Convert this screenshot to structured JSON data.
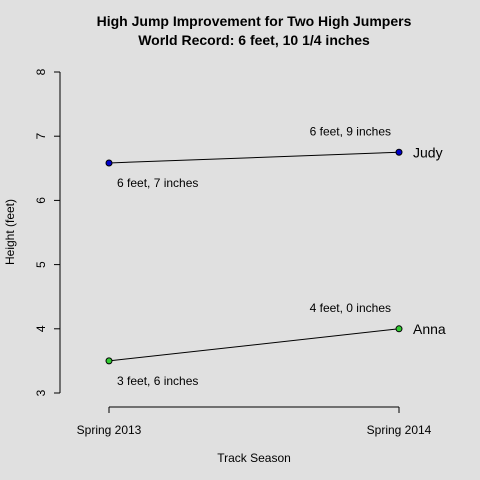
{
  "chart_data": {
    "type": "line",
    "title": "High Jump Improvement for Two High Jumpers",
    "subtitle": "World Record: 6 feet, 10 1/4 inches",
    "xlabel": "Track Season",
    "ylabel": "Height (feet)",
    "categories": [
      "Spring 2013",
      "Spring 2014"
    ],
    "ylim": [
      3,
      8
    ],
    "yticks": [
      3,
      4,
      5,
      6,
      7,
      8
    ],
    "grid": false,
    "series": [
      {
        "name": "Judy",
        "color": "#0000cc",
        "values": [
          6.583,
          6.75
        ],
        "labels": [
          "6 feet, 7 inches",
          "6 feet, 9 inches"
        ]
      },
      {
        "name": "Anna",
        "color": "#33cc33",
        "values": [
          3.5,
          4.0
        ],
        "labels": [
          "3 feet, 6 inches",
          "4 feet, 0 inches"
        ]
      }
    ]
  }
}
